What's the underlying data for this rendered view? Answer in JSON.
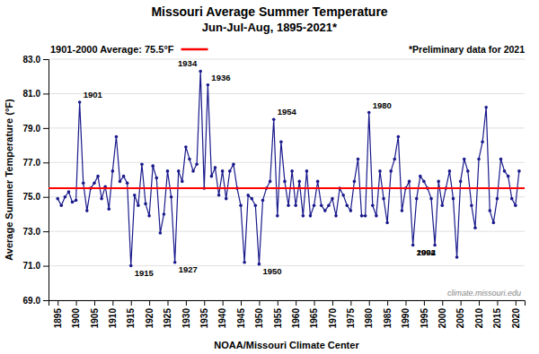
{
  "chart_data": {
    "type": "line",
    "title": "Missouri Average Summer Temperature",
    "subtitle": "Jun-Jul-Aug, 1895-2021*",
    "y_label": "Average Summer Temperature (°F)",
    "x_label": "NOAA/Missouri Climate Center",
    "note": "*Preliminary data for 2021",
    "watermark": "climate.missouri.edu",
    "color": "#1a1a8c",
    "marker": "circle",
    "grid": true,
    "xlim": [
      1892.5,
      2022.5
    ],
    "xticks": [
      1895,
      1900,
      1905,
      1910,
      1915,
      1920,
      1925,
      1930,
      1935,
      1940,
      1945,
      1950,
      1955,
      1960,
      1965,
      1970,
      1975,
      1980,
      1985,
      1990,
      1995,
      2000,
      2005,
      2010,
      2015,
      2020
    ],
    "ylim": [
      69.0,
      83.0
    ],
    "yticks": [
      {
        "value": 69.0,
        "label": "69.0"
      },
      {
        "value": 71.0,
        "label": "71.0"
      },
      {
        "value": 73.0,
        "label": "73.0"
      },
      {
        "value": 75.0,
        "label": "75.0"
      },
      {
        "value": 77.0,
        "label": "77.0"
      },
      {
        "value": 79.0,
        "label": "79.0"
      },
      {
        "value": 81.0,
        "label": "81.0"
      },
      {
        "value": 83.0,
        "label": "83.0"
      }
    ],
    "reference_line": {
      "value": 75.5,
      "label": "1901-2000 Average: 75.5°F",
      "color": "#FF0000"
    },
    "x": [
      1895,
      1896,
      1897,
      1898,
      1899,
      1900,
      1901,
      1902,
      1903,
      1904,
      1905,
      1906,
      1907,
      1908,
      1909,
      1910,
      1911,
      1912,
      1913,
      1914,
      1915,
      1916,
      1917,
      1918,
      1919,
      1920,
      1921,
      1922,
      1923,
      1924,
      1925,
      1926,
      1927,
      1928,
      1929,
      1930,
      1931,
      1932,
      1933,
      1934,
      1935,
      1936,
      1937,
      1938,
      1939,
      1940,
      1941,
      1942,
      1943,
      1944,
      1945,
      1946,
      1947,
      1948,
      1949,
      1950,
      1951,
      1952,
      1953,
      1954,
      1955,
      1956,
      1957,
      1958,
      1959,
      1960,
      1961,
      1962,
      1963,
      1964,
      1965,
      1966,
      1967,
      1968,
      1969,
      1970,
      1971,
      1972,
      1973,
      1974,
      1975,
      1976,
      1977,
      1978,
      1979,
      1980,
      1981,
      1982,
      1983,
      1984,
      1985,
      1986,
      1987,
      1988,
      1989,
      1990,
      1991,
      1992,
      1993,
      1994,
      1995,
      1996,
      1997,
      1998,
      1999,
      2000,
      2001,
      2002,
      2003,
      2004,
      2005,
      2006,
      2007,
      2008,
      2009,
      2010,
      2011,
      2012,
      2013,
      2014,
      2015,
      2016,
      2017,
      2018,
      2019,
      2020,
      2021
    ],
    "values": [
      74.9,
      74.5,
      75.0,
      75.3,
      74.7,
      74.8,
      80.5,
      75.8,
      74.2,
      75.5,
      75.8,
      76.2,
      74.9,
      75.6,
      74.3,
      76.5,
      78.5,
      75.9,
      76.2,
      75.8,
      71.0,
      75.1,
      74.5,
      76.9,
      74.6,
      73.9,
      76.8,
      76.1,
      72.9,
      74.0,
      76.5,
      75.0,
      71.2,
      76.5,
      75.9,
      77.9,
      77.2,
      76.5,
      76.9,
      82.3,
      75.5,
      81.5,
      76.2,
      76.7,
      75.1,
      76.5,
      74.9,
      76.5,
      76.9,
      75.5,
      74.5,
      71.2,
      75.1,
      74.9,
      74.5,
      71.1,
      74.8,
      75.5,
      75.9,
      79.5,
      73.9,
      78.2,
      75.9,
      74.5,
      76.5,
      74.5,
      75.9,
      73.9,
      76.5,
      73.9,
      74.5,
      75.9,
      74.5,
      74.2,
      74.5,
      74.9,
      73.9,
      75.5,
      75.1,
      74.5,
      74.2,
      75.9,
      77.2,
      73.9,
      73.9,
      79.9,
      74.5,
      73.9,
      76.5,
      74.9,
      73.5,
      76.5,
      77.2,
      78.5,
      74.2,
      75.5,
      75.9,
      72.2,
      74.9,
      76.2,
      75.9,
      75.5,
      74.9,
      72.2,
      75.9,
      74.5,
      75.5,
      76.5,
      74.9,
      71.5,
      75.9,
      77.2,
      76.5,
      74.5,
      73.2,
      77.2,
      78.2,
      80.2,
      74.2,
      73.5,
      74.9,
      77.2,
      76.5,
      76.2,
      74.9,
      74.5,
      76.5
    ],
    "annotations": [
      {
        "text": "1901",
        "x": 1901
      },
      {
        "text": "1915",
        "x": 1915
      },
      {
        "text": "1927",
        "x": 1927
      },
      {
        "text": "1934",
        "x": 1934
      },
      {
        "text": "1936",
        "x": 1936
      },
      {
        "text": "1950",
        "x": 1950
      },
      {
        "text": "1954",
        "x": 1954
      },
      {
        "text": "1980",
        "x": 1980
      },
      {
        "text": "1992",
        "x": 1992
      },
      {
        "text": "2004",
        "x": 1992.0
      }
    ]
  }
}
